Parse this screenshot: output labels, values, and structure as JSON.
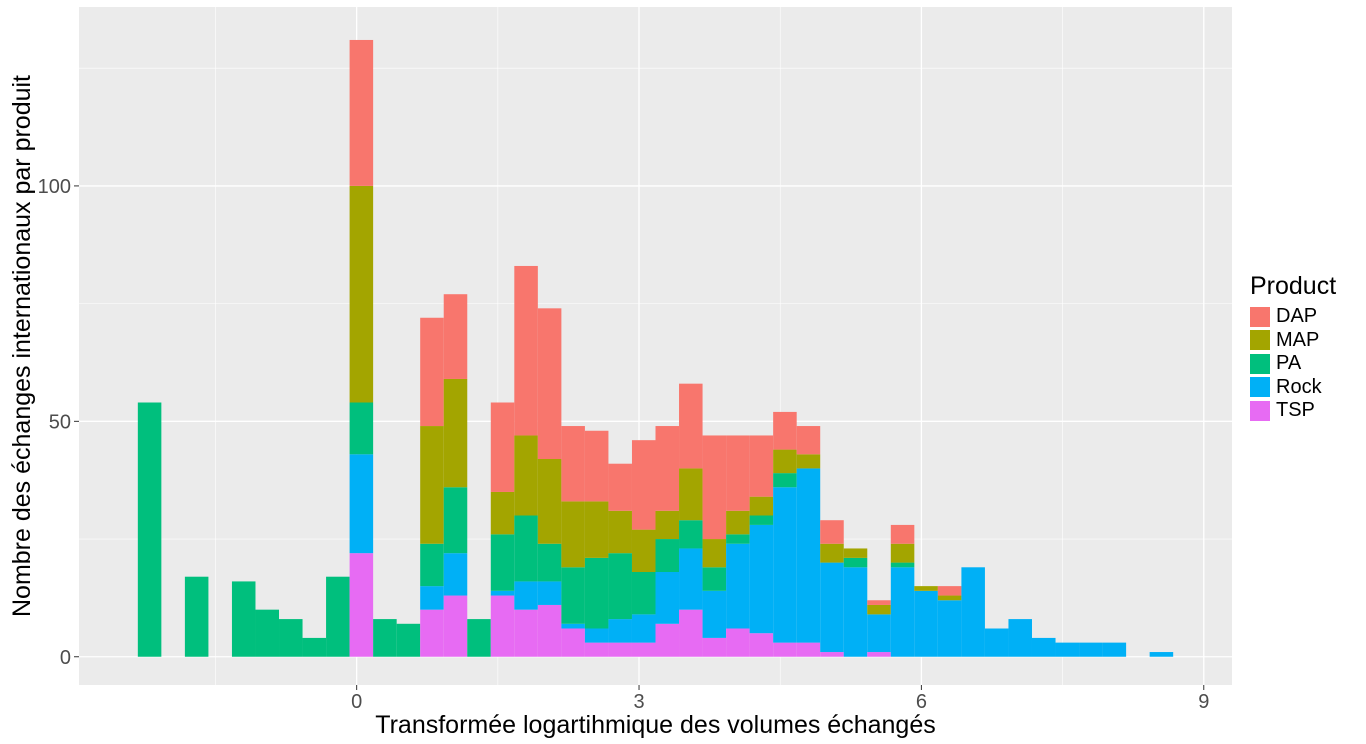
{
  "chart_data": {
    "type": "bar",
    "stacked": true,
    "title": "",
    "xlabel": "Transformée logartihmique des volumes échangés",
    "ylabel": "Nombre des échanges internationaux par produit",
    "xlim": [
      -2.95,
      9.3
    ],
    "ylim": [
      -6,
      138
    ],
    "x_ticks": [
      0,
      3,
      6,
      9
    ],
    "x_tick_labels": [
      "0",
      "3",
      "6",
      "9"
    ],
    "y_ticks": [
      0,
      50,
      100
    ],
    "y_tick_labels": [
      "0",
      "50",
      "100"
    ],
    "grid": true,
    "legend_position": "right",
    "legend_title": "Product",
    "bin_width": 0.25,
    "x": [
      -2.2,
      -1.95,
      -1.7,
      -1.45,
      -1.2,
      -0.95,
      -0.7,
      -0.45,
      -0.2,
      0.05,
      0.3,
      0.55,
      0.8,
      1.05,
      1.3,
      1.55,
      1.8,
      2.05,
      2.3,
      2.55,
      2.8,
      3.05,
      3.3,
      3.55,
      3.8,
      4.05,
      4.3,
      4.55,
      4.8,
      5.05,
      5.3,
      5.55,
      5.8,
      6.05,
      6.3,
      6.55,
      6.8,
      7.05,
      7.3,
      7.55,
      7.8,
      8.05,
      8.3,
      8.55
    ],
    "series": [
      {
        "name": "DAP",
        "color": "#F8766D",
        "values": [
          0,
          0,
          0,
          0,
          0,
          0,
          0,
          0,
          0,
          31,
          0,
          0,
          23,
          18,
          0,
          19,
          36,
          32,
          16,
          15,
          10,
          19,
          18,
          18,
          22,
          16,
          13,
          8,
          6,
          5,
          0,
          1,
          4,
          0,
          2,
          0,
          0,
          0,
          0,
          0,
          0,
          0,
          0,
          0
        ]
      },
      {
        "name": "MAP",
        "color": "#A3A500",
        "values": [
          0,
          0,
          0,
          0,
          0,
          0,
          0,
          0,
          0,
          46,
          0,
          0,
          25,
          23,
          0,
          9,
          17,
          18,
          14,
          12,
          9,
          9,
          6,
          11,
          6,
          5,
          4,
          5,
          3,
          4,
          2,
          2,
          4,
          1,
          1,
          0,
          0,
          0,
          0,
          0,
          0,
          0,
          0,
          0
        ]
      },
      {
        "name": "PA",
        "color": "#00BF7D",
        "values": [
          54,
          0,
          17,
          0,
          16,
          10,
          8,
          4,
          17,
          11,
          8,
          7,
          9,
          14,
          8,
          12,
          14,
          8,
          12,
          15,
          14,
          9,
          7,
          6,
          5,
          2,
          2,
          3,
          0,
          0,
          2,
          0,
          1,
          0,
          0,
          0,
          0,
          0,
          0,
          0,
          0,
          0,
          0,
          0
        ]
      },
      {
        "name": "Rock",
        "color": "#00B0F6",
        "values": [
          0,
          0,
          0,
          0,
          0,
          0,
          0,
          0,
          0,
          21,
          0,
          0,
          5,
          9,
          0,
          1,
          6,
          5,
          1,
          3,
          5,
          6,
          11,
          13,
          10,
          18,
          23,
          33,
          37,
          19,
          19,
          8,
          19,
          14,
          12,
          19,
          6,
          8,
          4,
          3,
          3,
          3,
          0,
          1
        ]
      },
      {
        "name": "TSP",
        "color": "#E76BF3",
        "values": [
          0,
          0,
          0,
          0,
          0,
          0,
          0,
          0,
          0,
          22,
          0,
          0,
          10,
          13,
          0,
          13,
          10,
          11,
          6,
          3,
          3,
          3,
          7,
          10,
          4,
          6,
          5,
          3,
          3,
          1,
          0,
          1,
          0,
          0,
          0,
          0,
          0,
          0,
          0,
          0,
          0,
          0,
          0,
          0
        ]
      }
    ]
  },
  "colors": {
    "panel_background": "#EBEBEB",
    "grid_major": "#FFFFFF",
    "axis_text": "#4D4D4D"
  }
}
